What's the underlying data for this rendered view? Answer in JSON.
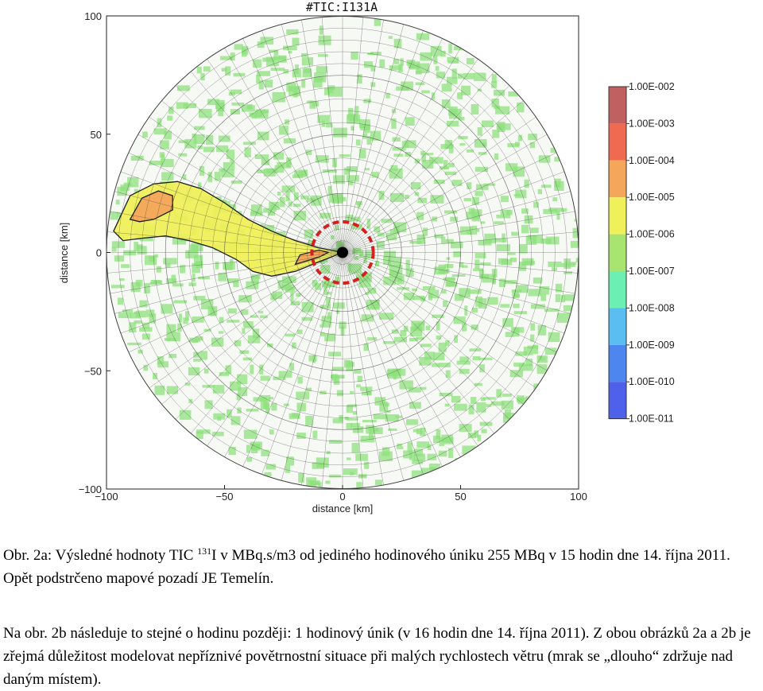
{
  "chart_data": {
    "type": "heatmap",
    "title": "#TIC:I131A",
    "xlabel": "distance [km]",
    "ylabel": "distance [km]",
    "xlim": [
      -100,
      100
    ],
    "ylim": [
      -100,
      100
    ],
    "x_ticks": [
      "−100",
      "−50",
      "0",
      "50",
      "100"
    ],
    "y_ticks": [
      "100",
      "50",
      "0",
      "−50",
      "−100"
    ],
    "x_tick_values": [
      -100,
      -50,
      0,
      50,
      100
    ],
    "y_tick_values": [
      100,
      50,
      0,
      -50,
      -100
    ],
    "polar_domain_radius_km": 100,
    "source_location_km": [
      0,
      0
    ],
    "highlight_circle_radius_km": 13,
    "colorbar": {
      "labels": [
        "1.00E-002",
        "1.00E-003",
        "1.00E-004",
        "1.00E-005",
        "1.00E-006",
        "1.00E-007",
        "1.00E-008",
        "1.00E-009",
        "1.00E-010",
        "1.00E-011"
      ],
      "colors": [
        "#c06060",
        "#f06a52",
        "#f4a65a",
        "#f0f05a",
        "#a8e470",
        "#6cefb2",
        "#5bbef2",
        "#4d86ee",
        "#4f60ea"
      ]
    },
    "plume_regions": [
      {
        "level_color": "#f0f05a",
        "outline": [
          [
            -97,
            9
          ],
          [
            -90,
            24
          ],
          [
            -80,
            29
          ],
          [
            -70,
            30
          ],
          [
            -60,
            27
          ],
          [
            -50,
            21
          ],
          [
            -40,
            14
          ],
          [
            -30,
            9
          ],
          [
            -20,
            5
          ],
          [
            -10,
            2
          ],
          [
            0,
            0
          ],
          [
            -10,
            -4
          ],
          [
            -20,
            -8
          ],
          [
            -30,
            -10
          ],
          [
            -38,
            -8
          ],
          [
            -45,
            -3
          ],
          [
            -55,
            2
          ],
          [
            -65,
            5
          ],
          [
            -75,
            7
          ],
          [
            -85,
            6
          ],
          [
            -93,
            5
          ]
        ]
      },
      {
        "level_color": "#f4a65a",
        "outline": [
          [
            -90,
            14
          ],
          [
            -85,
            23
          ],
          [
            -78,
            26
          ],
          [
            -72,
            24
          ],
          [
            -72,
            18
          ],
          [
            -80,
            14
          ],
          [
            -86,
            13
          ]
        ]
      },
      {
        "level_color": "#f4a65a",
        "outline": [
          [
            -20,
            -5
          ],
          [
            -10,
            -2
          ],
          [
            -6,
            0
          ],
          [
            -10,
            1
          ],
          [
            -18,
            -1
          ]
        ]
      }
    ]
  },
  "caption": {
    "line1_pre": "Obr. 2a: Výsledné hodnoty TIC ",
    "line1_sup": "131",
    "line1_post": "I v MBq.s/m3  od jediného hodinového úniku 255 MBq v 15 hodin dne 14. října 2011. Opět podstrčeno mapové pozadí JE Temelín.",
    "paragraph2": "Na obr. 2b následuje to stejné o hodinu později:  1 hodinový únik (v 16 hodin dne 14. října 2011).  Z obou obrázků 2a a 2b je zřejmá důležitost modelovat nepříznivé povětrnostní situace při malých rychlostech větru (mrak se „dlouho“ zdržuje nad daným místem)."
  }
}
